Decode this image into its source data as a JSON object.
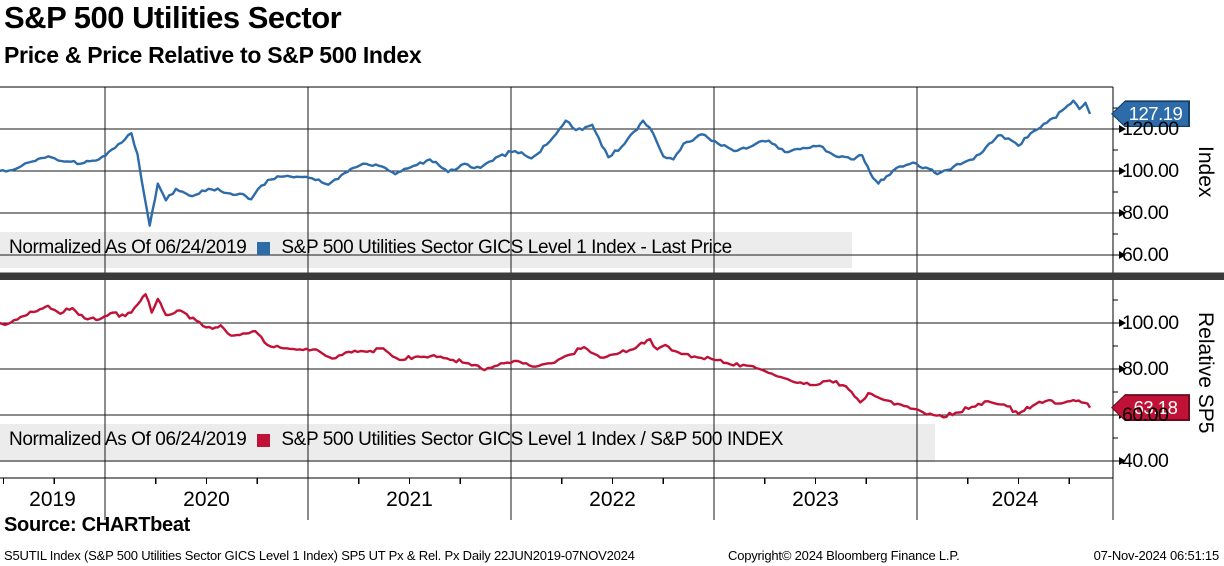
{
  "header": {
    "title": "S&P 500 Utilities Sector",
    "subtitle": "Price & Price Relative to S&P 500 Index"
  },
  "source_line": "Source: CHARTbeat",
  "footer": {
    "left": "S5UTIL Index (S&P 500 Utilities Sector GICS Level 1 Index) SP5 UT Px & Rel. Px  Daily 22JUN2019-07NOV2024",
    "center": "Copyright© 2024 Bloomberg Finance L.P.",
    "right": "07-Nov-2024 06:51:15"
  },
  "top_panel": {
    "legend_prefix": "Normalized As Of 06/24/2019",
    "legend_series": "S&P 500 Utilities Sector GICS Level 1 Index - Last Price",
    "axis_title": "Index",
    "last_price_label": "127.19"
  },
  "bottom_panel": {
    "legend_prefix": "Normalized As Of 06/24/2019",
    "legend_series": "S&P 500 Utilities Sector GICS Level 1 Index / S&P 500 INDEX",
    "axis_title": "Relative SP5",
    "last_price_label": "63.18"
  },
  "x_axis": {
    "year_labels": [
      "2019",
      "2020",
      "2021",
      "2022",
      "2023",
      "2024"
    ],
    "range_note": "Daily 22JUN2019-07NOV2024"
  },
  "colors": {
    "blue_line": "#2d6ca8",
    "blue_badge_edge": "#143f6b",
    "red_line": "#c01236",
    "red_badge_edge": "#6e0a20",
    "legend_bg": "#ececec",
    "divider": "#3b3b3b"
  },
  "chart_data": [
    {
      "type": "line",
      "name": "S&P 500 Utilities Sector GICS Level 1 Index - Last Price",
      "normalized_as_of": "06/24/2019",
      "ylabel": "Index",
      "ylim": [
        52,
        142
      ],
      "ytick_values": [
        60,
        80,
        100,
        120
      ],
      "ytick_labels": [
        "60.00",
        "80.00",
        "100.00",
        "120.00"
      ],
      "minor_ticks": [
        70,
        90,
        110,
        130
      ],
      "last": 127.19,
      "color": "#2d6ca8",
      "x_unit": "decimal_year",
      "x": [
        2019.48,
        2019.56,
        2019.64,
        2019.72,
        2019.8,
        2019.88,
        2019.97,
        2020.05,
        2020.13,
        2020.16,
        2020.18,
        2020.22,
        2020.26,
        2020.3,
        2020.35,
        2020.43,
        2020.51,
        2020.6,
        2020.68,
        2020.72,
        2020.77,
        2020.85,
        2020.93,
        2021.02,
        2021.1,
        2021.18,
        2021.27,
        2021.35,
        2021.43,
        2021.52,
        2021.6,
        2021.69,
        2021.77,
        2021.85,
        2021.94,
        2022.02,
        2022.1,
        2022.19,
        2022.27,
        2022.32,
        2022.4,
        2022.48,
        2022.56,
        2022.65,
        2022.7,
        2022.75,
        2022.8,
        2022.85,
        2022.94,
        2023.02,
        2023.1,
        2023.19,
        2023.27,
        2023.35,
        2023.44,
        2023.52,
        2023.6,
        2023.69,
        2023.73,
        2023.77,
        2023.81,
        2023.85,
        2023.9,
        2023.98,
        2024.06,
        2024.1,
        2024.15,
        2024.23,
        2024.31,
        2024.4,
        2024.45,
        2024.5,
        2024.56,
        2024.64,
        2024.73,
        2024.77,
        2024.8,
        2024.83,
        2024.852
      ],
      "y": [
        100,
        101,
        104.5,
        107,
        104.5,
        103.5,
        105.5,
        111,
        118,
        108,
        96,
        74,
        94,
        86,
        91.5,
        88,
        91.5,
        89.5,
        89,
        86.5,
        93,
        97.5,
        97,
        96.5,
        93.5,
        99,
        103.5,
        102.5,
        98.5,
        102.5,
        105.5,
        99.5,
        103.5,
        101.5,
        107,
        109.5,
        106,
        114,
        124,
        119.5,
        122,
        106.5,
        113,
        124,
        118,
        107,
        105.5,
        113,
        117.5,
        113,
        109.5,
        112,
        114.5,
        109,
        111,
        112,
        107,
        105.5,
        107.5,
        99,
        94,
        97.5,
        101.5,
        104,
        101,
        98.5,
        100.5,
        104,
        108,
        117,
        115.5,
        112,
        118,
        123,
        130,
        133.5,
        129.5,
        132.5,
        127.19
      ]
    },
    {
      "type": "line",
      "name": "S&P 500 Utilities Sector GICS Level 1 Index / S&P 500 INDEX",
      "normalized_as_of": "06/24/2019",
      "ylabel": "Relative SP5",
      "ylim": [
        33,
        113
      ],
      "ytick_values": [
        40,
        60,
        80,
        100
      ],
      "ytick_labels": [
        "40.00",
        "60.00",
        "80.00",
        "100.00"
      ],
      "minor_ticks": [
        50,
        70,
        90,
        110
      ],
      "last": 63.18,
      "color": "#c01236",
      "x_unit": "decimal_year",
      "x": [
        2019.48,
        2019.52,
        2019.6,
        2019.68,
        2019.72,
        2019.78,
        2019.84,
        2019.9,
        2019.97,
        2020.04,
        2020.1,
        2020.16,
        2020.2,
        2020.23,
        2020.26,
        2020.3,
        2020.37,
        2020.45,
        2020.53,
        2020.57,
        2020.62,
        2020.68,
        2020.74,
        2020.8,
        2020.88,
        2020.96,
        2021.04,
        2021.12,
        2021.2,
        2021.29,
        2021.37,
        2021.45,
        2021.54,
        2021.62,
        2021.7,
        2021.79,
        2021.87,
        2021.95,
        2022.03,
        2022.12,
        2022.2,
        2022.28,
        2022.36,
        2022.44,
        2022.52,
        2022.6,
        2022.685,
        2022.72,
        2022.76,
        2022.84,
        2022.92,
        2023.0,
        2023.08,
        2023.16,
        2023.24,
        2023.33,
        2023.41,
        2023.49,
        2023.57,
        2023.65,
        2023.72,
        2023.76,
        2023.84,
        2023.92,
        2024.0,
        2024.08,
        2024.13,
        2024.19,
        2024.27,
        2024.35,
        2024.43,
        2024.5,
        2024.57,
        2024.65,
        2024.71,
        2024.77,
        2024.81,
        2024.84,
        2024.852
      ],
      "y": [
        100,
        99.5,
        103,
        106,
        107.5,
        104,
        106.5,
        102,
        101.5,
        104.5,
        103,
        108,
        112.5,
        104.5,
        110.5,
        103.5,
        105.5,
        101,
        97.5,
        99,
        94.5,
        95.5,
        96.5,
        90.5,
        89,
        88.5,
        88.5,
        84.5,
        87.5,
        87.5,
        89,
        84,
        85.5,
        86,
        84,
        82.5,
        79.5,
        82.5,
        83.5,
        81,
        82.5,
        86,
        89.5,
        85,
        86.5,
        88.5,
        93,
        88.5,
        90.5,
        86.5,
        85,
        84,
        82,
        81.5,
        79.5,
        76.5,
        74,
        73,
        75,
        72.5,
        65.5,
        69.5,
        66.5,
        64.5,
        62.5,
        60,
        59,
        61,
        63.5,
        66,
        64.5,
        60.5,
        64,
        66.5,
        65,
        66.5,
        65.5,
        65,
        63.18
      ]
    }
  ]
}
